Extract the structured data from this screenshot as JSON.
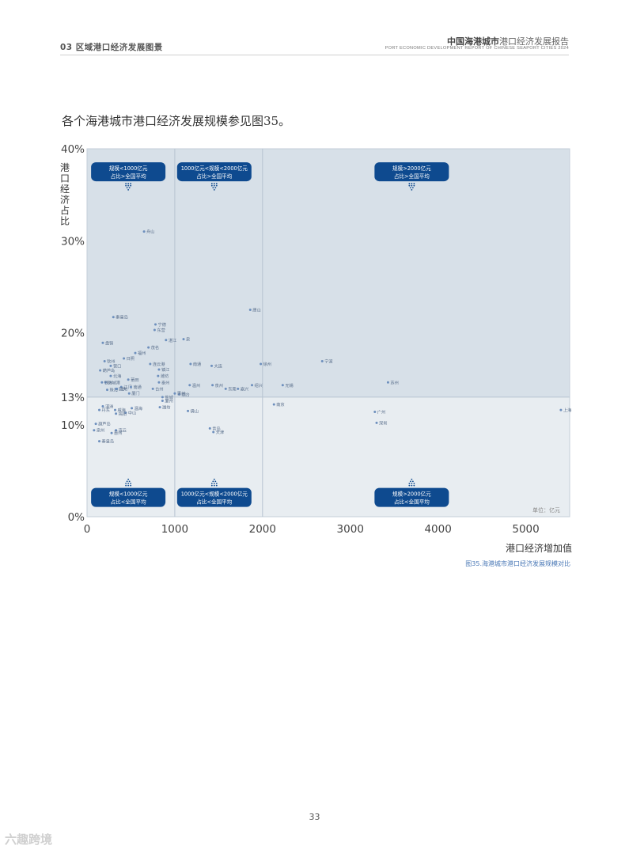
{
  "header": {
    "section": "03 区域港口经济发展图景",
    "report_cn_bold": "中国海港城市",
    "report_cn_rest": "港口经济发展报告",
    "report_en": "PORT ECONOMIC DEVELOPMENT REPORT OF CHINESE SEAPORT CITIES 2024"
  },
  "intro_text": "各个海港城市港口经济发展规模参见图35。",
  "caption": "图35.海港城市港口经济发展规模对比",
  "page_number": "33",
  "watermark": "六趣跨境",
  "colors": {
    "quad_low": "#e8edf1",
    "quad_high": "#d7e0e8",
    "badge": "#0e4a8f",
    "point": "#6d8fbd",
    "axis_text": "#444444"
  },
  "chart_data": {
    "type": "scatter",
    "xlabel": "港口经济增加值",
    "ylabel": "港口经济占比",
    "unit_note": "单位：亿元",
    "xlim": [
      0,
      5500
    ],
    "ylim": [
      0,
      40
    ],
    "x_ticks": [
      0,
      1000,
      2000,
      3000,
      4000,
      5000
    ],
    "y_ticks": [
      {
        "value": 40,
        "label": "40%"
      },
      {
        "value": 30,
        "label": "30%"
      },
      {
        "value": 20,
        "label": "20%"
      },
      {
        "value": 13,
        "label": "13%"
      },
      {
        "value": 10,
        "label": "10%"
      },
      {
        "value": 0,
        "label": "0%"
      }
    ],
    "x_thresholds": [
      1000,
      2000
    ],
    "y_threshold": 13,
    "quadrant_badges": [
      {
        "line1": "规模<1000亿元",
        "line2": "占比>全国平均",
        "cx": 470,
        "cy": 37.5,
        "arrow": "down"
      },
      {
        "line1": "1000亿元<规模<2000亿元",
        "line2": "占比>全国平均",
        "cx": 1450,
        "cy": 37.5,
        "arrow": "down"
      },
      {
        "line1": "规模>2000亿元",
        "line2": "占比>全国平均",
        "cx": 3700,
        "cy": 37.5,
        "arrow": "down"
      },
      {
        "line1": "规模<1000亿元",
        "line2": "占比<全国平均",
        "cx": 470,
        "cy": 2.1,
        "arrow": "up"
      },
      {
        "line1": "1000亿元<规模<2000亿元",
        "line2": "占比<全国平均",
        "cx": 1450,
        "cy": 2.1,
        "arrow": "up"
      },
      {
        "line1": "规模>2000亿元",
        "line2": "占比<全国平均",
        "cx": 3700,
        "cy": 2.1,
        "arrow": "up"
      }
    ],
    "points": [
      {
        "name": "舟山",
        "x": 650,
        "y": 31.0
      },
      {
        "name": "秦皇岛",
        "x": 300,
        "y": 21.7
      },
      {
        "name": "宁德",
        "x": 780,
        "y": 20.9
      },
      {
        "name": "东营",
        "x": 770,
        "y": 20.3
      },
      {
        "name": "盘锦",
        "x": 180,
        "y": 18.9
      },
      {
        "name": "湛江",
        "x": 900,
        "y": 19.2
      },
      {
        "name": "茂名",
        "x": 700,
        "y": 18.4
      },
      {
        "name": "福州",
        "x": 550,
        "y": 17.8
      },
      {
        "name": "日照",
        "x": 420,
        "y": 17.2
      },
      {
        "name": "钦州",
        "x": 200,
        "y": 16.9
      },
      {
        "name": "营口",
        "x": 270,
        "y": 16.4
      },
      {
        "name": "连云港",
        "x": 720,
        "y": 16.6
      },
      {
        "name": "镇江",
        "x": 820,
        "y": 16.0
      },
      {
        "name": "葫芦岛",
        "x": 150,
        "y": 15.9
      },
      {
        "name": "北海",
        "x": 270,
        "y": 15.3
      },
      {
        "name": "莆田",
        "x": 470,
        "y": 14.9
      },
      {
        "name": "潍坊",
        "x": 810,
        "y": 15.3
      },
      {
        "name": "防城港",
        "x": 210,
        "y": 14.6
      },
      {
        "name": "铁州",
        "x": 170,
        "y": 14.6
      },
      {
        "name": "江门",
        "x": 390,
        "y": 14.1
      },
      {
        "name": "南通",
        "x": 500,
        "y": 14.1
      },
      {
        "name": "泰州",
        "x": 820,
        "y": 14.6
      },
      {
        "name": "珠海",
        "x": 230,
        "y": 13.8
      },
      {
        "name": "漳州",
        "x": 340,
        "y": 13.9
      },
      {
        "name": "汕头",
        "x": 330,
        "y": 13.9
      },
      {
        "name": "厦门",
        "x": 480,
        "y": 13.4
      },
      {
        "name": "台州",
        "x": 750,
        "y": 13.9
      },
      {
        "name": "烟台",
        "x": 1050,
        "y": 13.3
      },
      {
        "name": "盐城",
        "x": 860,
        "y": 13.0
      },
      {
        "name": "惠州",
        "x": 1000,
        "y": 13.4
      },
      {
        "name": "泉州",
        "x": 1430,
        "y": 14.3
      },
      {
        "name": "东莞",
        "x": 1580,
        "y": 13.9
      },
      {
        "name": "嘉兴",
        "x": 1720,
        "y": 13.9
      },
      {
        "name": "绍兴",
        "x": 1880,
        "y": 14.3
      },
      {
        "name": "温州",
        "x": 1170,
        "y": 14.3
      },
      {
        "name": "唐山",
        "x": 1860,
        "y": 22.5
      },
      {
        "name": "泉",
        "x": 1100,
        "y": 19.3
      },
      {
        "name": "南通",
        "x": 1180,
        "y": 16.6
      },
      {
        "name": "大连",
        "x": 1420,
        "y": 16.4
      },
      {
        "name": "徐州",
        "x": 1980,
        "y": 16.6
      },
      {
        "name": "宁波",
        "x": 2680,
        "y": 16.9
      },
      {
        "name": "苏州",
        "x": 3430,
        "y": 14.6
      },
      {
        "name": "无锡",
        "x": 2230,
        "y": 14.3
      },
      {
        "name": "南京",
        "x": 2130,
        "y": 12.2
      },
      {
        "name": "厦州",
        "x": 860,
        "y": 12.6
      },
      {
        "name": "潍坊",
        "x": 830,
        "y": 11.9
      },
      {
        "name": "湛洲",
        "x": 180,
        "y": 12.0
      },
      {
        "name": "丹东",
        "x": 140,
        "y": 11.6
      },
      {
        "name": "威海",
        "x": 320,
        "y": 11.6
      },
      {
        "name": "温海",
        "x": 510,
        "y": 11.8
      },
      {
        "name": "中山",
        "x": 440,
        "y": 11.3
      },
      {
        "name": "揭阳",
        "x": 330,
        "y": 11.2
      },
      {
        "name": "葫芦岛",
        "x": 100,
        "y": 10.1
      },
      {
        "name": "青岛",
        "x": 1400,
        "y": 9.6
      },
      {
        "name": "天津",
        "x": 1440,
        "y": 9.2
      },
      {
        "name": "佛山",
        "x": 1150,
        "y": 11.5
      },
      {
        "name": "广州",
        "x": 3280,
        "y": 11.4
      },
      {
        "name": "深圳",
        "x": 3300,
        "y": 10.2
      },
      {
        "name": "上海",
        "x": 5400,
        "y": 11.6
      },
      {
        "name": "泉州",
        "x": 80,
        "y": 9.4
      },
      {
        "name": "连云",
        "x": 330,
        "y": 9.4
      },
      {
        "name": "惠州",
        "x": 280,
        "y": 9.1
      },
      {
        "name": "秦皇岛",
        "x": 140,
        "y": 8.2
      }
    ]
  }
}
